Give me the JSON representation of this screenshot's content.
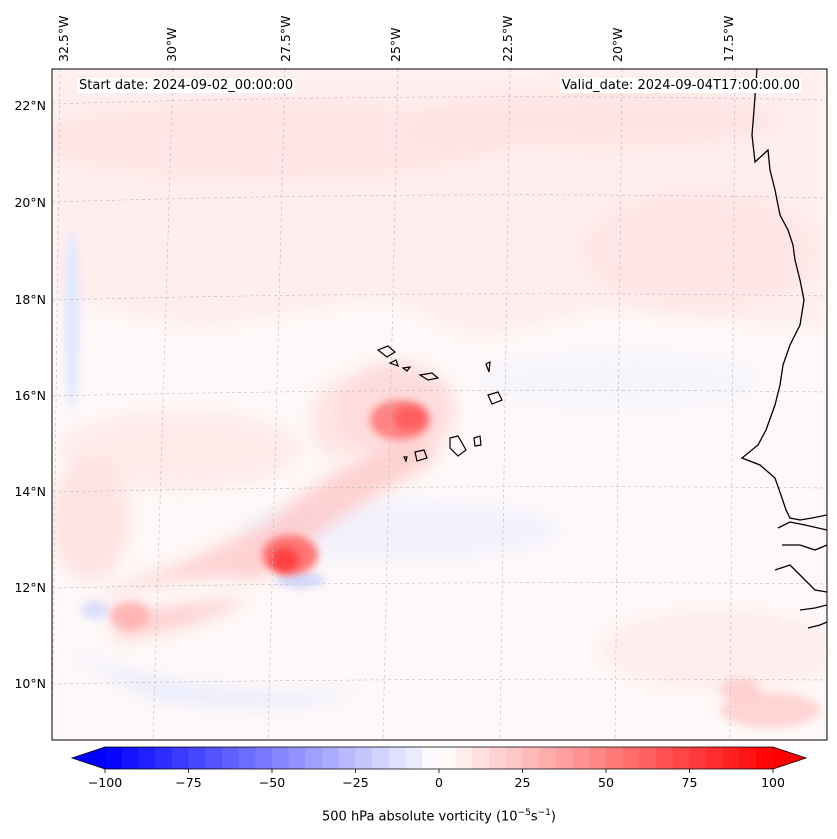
{
  "header": {
    "start_date": "Start date: 2024-09-02_00:00:00",
    "valid_date": "Valid_date: 2024-09-04T17:00:00.00"
  },
  "map": {
    "lon_labels": [
      "32.5°W",
      "30°W",
      "27.5°W",
      "25°W",
      "22.5°W",
      "20°W",
      "17.5°W"
    ],
    "lat_labels": [
      "22°N",
      "20°N",
      "18°N",
      "16°N",
      "14°N",
      "12°N",
      "10°N"
    ],
    "field": "500 hPa absolute vorticity",
    "colormap": "bwr",
    "coastline_color": "#000000",
    "gridlines": true
  },
  "colorbar": {
    "label": "500 hPa absolute vorticity (10",
    "label_exp1": "−5",
    "label_mid": "s",
    "label_exp2": "−1",
    "label_end": ")",
    "ticks": [
      "−100",
      "−75",
      "−50",
      "−25",
      "0",
      "25",
      "50",
      "75",
      "100"
    ],
    "min": -100,
    "max": 100,
    "extend": "both",
    "min_color": "#0000ff",
    "max_color": "#ff0000"
  }
}
